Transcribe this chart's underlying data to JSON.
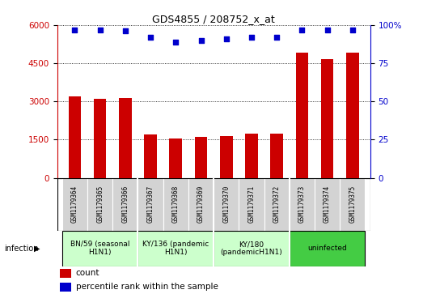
{
  "title": "GDS4855 / 208752_x_at",
  "samples": [
    "GSM1179364",
    "GSM1179365",
    "GSM1179366",
    "GSM1179367",
    "GSM1179368",
    "GSM1179369",
    "GSM1179370",
    "GSM1179371",
    "GSM1179372",
    "GSM1179373",
    "GSM1179374",
    "GSM1179375"
  ],
  "counts": [
    3200,
    3100,
    3150,
    1700,
    1550,
    1600,
    1650,
    1750,
    1750,
    4900,
    4650,
    4900
  ],
  "percentiles": [
    97,
    97,
    96,
    92,
    89,
    90,
    91,
    92,
    92,
    97,
    97,
    97
  ],
  "groups": [
    {
      "label": "BN/59 (seasonal\nH1N1)",
      "start": 0,
      "end": 3,
      "color": "#ccffcc"
    },
    {
      "label": "KY/136 (pandemic\nH1N1)",
      "start": 3,
      "end": 6,
      "color": "#ccffcc"
    },
    {
      "label": "KY/180\n(pandemicH1N1)",
      "start": 6,
      "end": 9,
      "color": "#ccffcc"
    },
    {
      "label": "uninfected",
      "start": 9,
      "end": 12,
      "color": "#44cc44"
    }
  ],
  "group_dividers": [
    3,
    6,
    9
  ],
  "ylim_left": [
    0,
    6000
  ],
  "ylim_right": [
    0,
    100
  ],
  "yticks_left": [
    0,
    1500,
    3000,
    4500,
    6000
  ],
  "yticks_right": [
    0,
    25,
    50,
    75,
    100
  ],
  "yticklabels_right": [
    "0",
    "25",
    "50",
    "75",
    "100%"
  ],
  "bar_color": "#cc0000",
  "dot_color": "#0000cc",
  "bar_width": 0.5,
  "legend_count_label": "count",
  "legend_pct_label": "percentile rank within the sample",
  "infection_label": "infection",
  "sample_bg_color": "#d3d3d3",
  "sample_border_color": "#ffffff",
  "group_border_color": "#ffffff"
}
